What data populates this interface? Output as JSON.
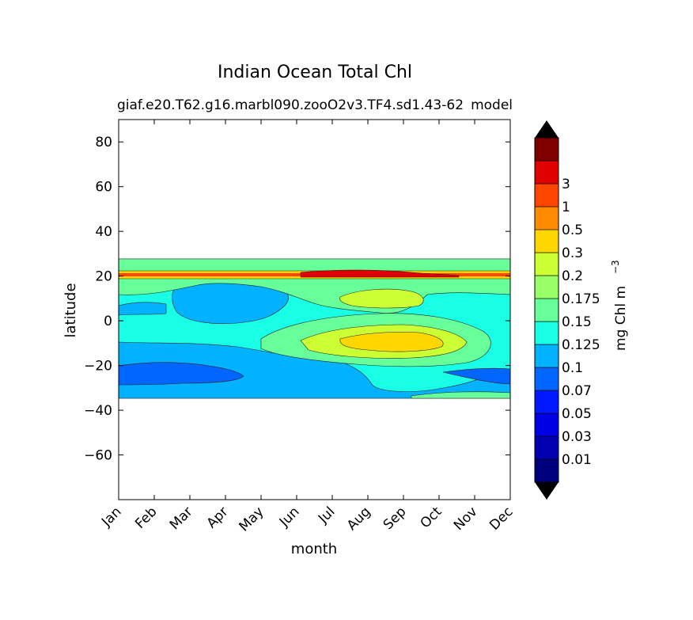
{
  "chart_data": {
    "type": "heatmap",
    "title": "Indian Ocean Total Chl",
    "subtitle_left": "giaf.e20.T62.g16.marbl090.zooO2v3.TF4.sd1.43-62",
    "subtitle_right": "model",
    "xlabel": "month",
    "ylabel": "latitude",
    "x_categories": [
      "Jan",
      "Feb",
      "Mar",
      "Apr",
      "May",
      "Jun",
      "Jul",
      "Aug",
      "Sep",
      "Oct",
      "Nov",
      "Dec"
    ],
    "y_ticks": [
      80,
      60,
      40,
      20,
      0,
      -20,
      -40,
      -60
    ],
    "ylim": [
      -80,
      90
    ],
    "data_lat_range": [
      -34,
      27
    ],
    "colorbar": {
      "label": "mg Chl m",
      "label_superscript": "−3",
      "extend": "both",
      "levels": [
        "0.01",
        "0.03",
        "0.05",
        "0.07",
        "0.1",
        "0.125",
        "0.15",
        "0.175",
        "0.2",
        "0.3",
        "0.5",
        "1",
        "3"
      ],
      "colors": [
        "#00007f",
        "#0000b2",
        "#0000e5",
        "#0019ff",
        "#0066ff",
        "#00b2ff",
        "#19ffe5",
        "#66ff99",
        "#99ff66",
        "#ccff33",
        "#ffd700",
        "#ff8c00",
        "#ff4500",
        "#e00000",
        "#800000"
      ],
      "under_color": "#000000",
      "over_color": "#000000"
    }
  }
}
